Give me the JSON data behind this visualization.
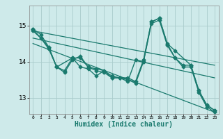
{
  "bg_color": "#ceeaea",
  "line_color": "#1a7a6e",
  "grid_color": "#aacccc",
  "xlabel": "Humidex (Indice chaleur)",
  "xlabel_fontsize": 7,
  "yticks": [
    13,
    14,
    15
  ],
  "xticks": [
    0,
    1,
    2,
    3,
    4,
    5,
    6,
    7,
    8,
    9,
    10,
    11,
    12,
    13,
    14,
    15,
    16,
    17,
    18,
    19,
    20,
    21,
    22,
    23
  ],
  "xlim": [
    -0.5,
    23.5
  ],
  "ylim": [
    12.55,
    15.55
  ],
  "series1_x": [
    0,
    1,
    2,
    3,
    4,
    5,
    6,
    7,
    8,
    9,
    10,
    11,
    12,
    13,
    14,
    15,
    16,
    17,
    18,
    19,
    20,
    21,
    22,
    23
  ],
  "series1_y": [
    14.9,
    14.75,
    14.4,
    13.85,
    13.75,
    14.1,
    14.1,
    13.85,
    13.8,
    13.75,
    13.6,
    13.55,
    13.55,
    13.45,
    14.05,
    15.1,
    15.2,
    14.5,
    14.1,
    13.9,
    13.9,
    13.2,
    12.8,
    12.65
  ],
  "series2_x": [
    0,
    1,
    2,
    3,
    4,
    5,
    6,
    7,
    8,
    9,
    10,
    11,
    12,
    13,
    14,
    15,
    16,
    17,
    18,
    19,
    20,
    21,
    22,
    23
  ],
  "series2_y": [
    14.85,
    14.65,
    14.35,
    13.85,
    13.7,
    14.05,
    14.15,
    13.85,
    13.75,
    13.7,
    13.55,
    13.55,
    13.5,
    13.4,
    14.0,
    15.05,
    15.15,
    14.45,
    14.1,
    13.85,
    13.85,
    13.15,
    12.75,
    12.6
  ],
  "series3_x": [
    0,
    2,
    3,
    5,
    6,
    7,
    8,
    9,
    10,
    11,
    12,
    13,
    14,
    15,
    16,
    17,
    18,
    20,
    21,
    22,
    23
  ],
  "series3_y": [
    14.9,
    14.4,
    13.85,
    14.1,
    13.85,
    13.8,
    13.6,
    13.75,
    13.55,
    13.55,
    13.45,
    14.05,
    14.0,
    15.1,
    15.2,
    14.5,
    14.3,
    13.9,
    13.2,
    12.8,
    12.65
  ],
  "trend1_x": [
    0,
    23
  ],
  "trend1_y": [
    14.85,
    13.9
  ],
  "trend2_x": [
    0,
    23
  ],
  "trend2_y": [
    14.65,
    13.55
  ],
  "trend3_x": [
    0,
    23
  ],
  "trend3_y": [
    14.5,
    12.6
  ]
}
